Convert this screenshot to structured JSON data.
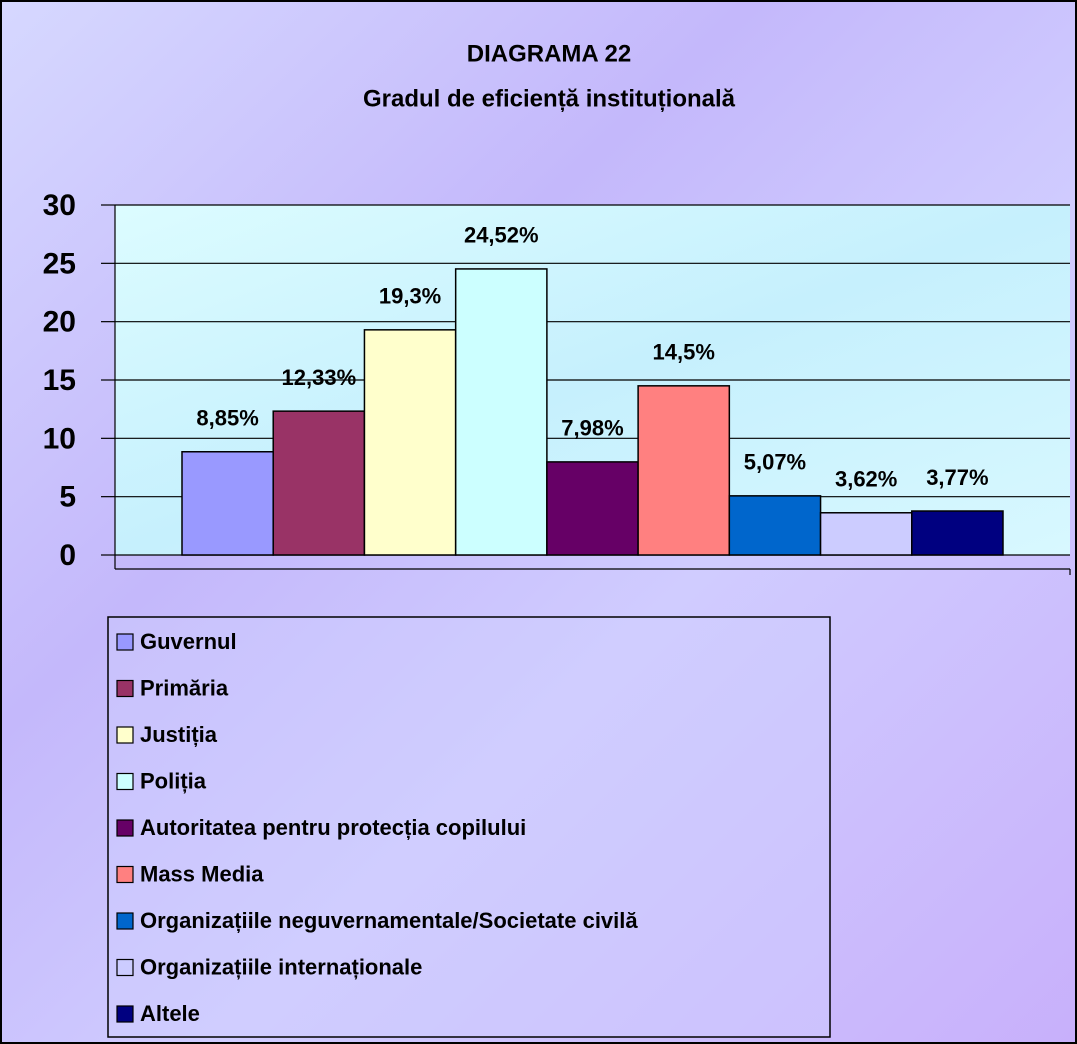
{
  "chart_data": {
    "type": "bar",
    "title": "DIAGRAMA 22",
    "subtitle": "Gradul de eficiență instituțională",
    "categories": [
      null
    ],
    "series": [
      {
        "name": "Guvernul",
        "color": "#9999ff",
        "values": [
          8.85
        ],
        "value_labels": [
          "8,85%"
        ]
      },
      {
        "name": "Primăria",
        "color": "#993366",
        "values": [
          12.33
        ],
        "value_labels": [
          "12,33%"
        ]
      },
      {
        "name": "Justiția",
        "color": "#ffffcc",
        "values": [
          19.3
        ],
        "value_labels": [
          "19,3%"
        ]
      },
      {
        "name": "Poliția",
        "color": "#ccffff",
        "values": [
          24.52
        ],
        "value_labels": [
          "24,52%"
        ]
      },
      {
        "name": "Autoritatea pentru protecția copilului",
        "color": "#660066",
        "values": [
          7.98
        ],
        "value_labels": [
          "7,98%"
        ]
      },
      {
        "name": "Mass Media",
        "color": "#ff8080",
        "values": [
          14.5
        ],
        "value_labels": [
          "14,5%"
        ]
      },
      {
        "name": "Organizațiile neguvernamentale/Societate civilă",
        "color": "#0066cc",
        "values": [
          5.07
        ],
        "value_labels": [
          "5,07%"
        ]
      },
      {
        "name": "Organizațiile internaționale",
        "color": "#ccccff",
        "values": [
          3.62
        ],
        "value_labels": [
          "3,62%"
        ]
      },
      {
        "name": "Altele",
        "color": "#000080",
        "values": [
          3.77
        ],
        "value_labels": [
          "3,77%"
        ]
      }
    ],
    "ylim": [
      0,
      30
    ],
    "yticks": [
      0,
      5,
      10,
      15,
      20,
      25,
      30
    ],
    "grid": true,
    "legend": "bottom"
  }
}
